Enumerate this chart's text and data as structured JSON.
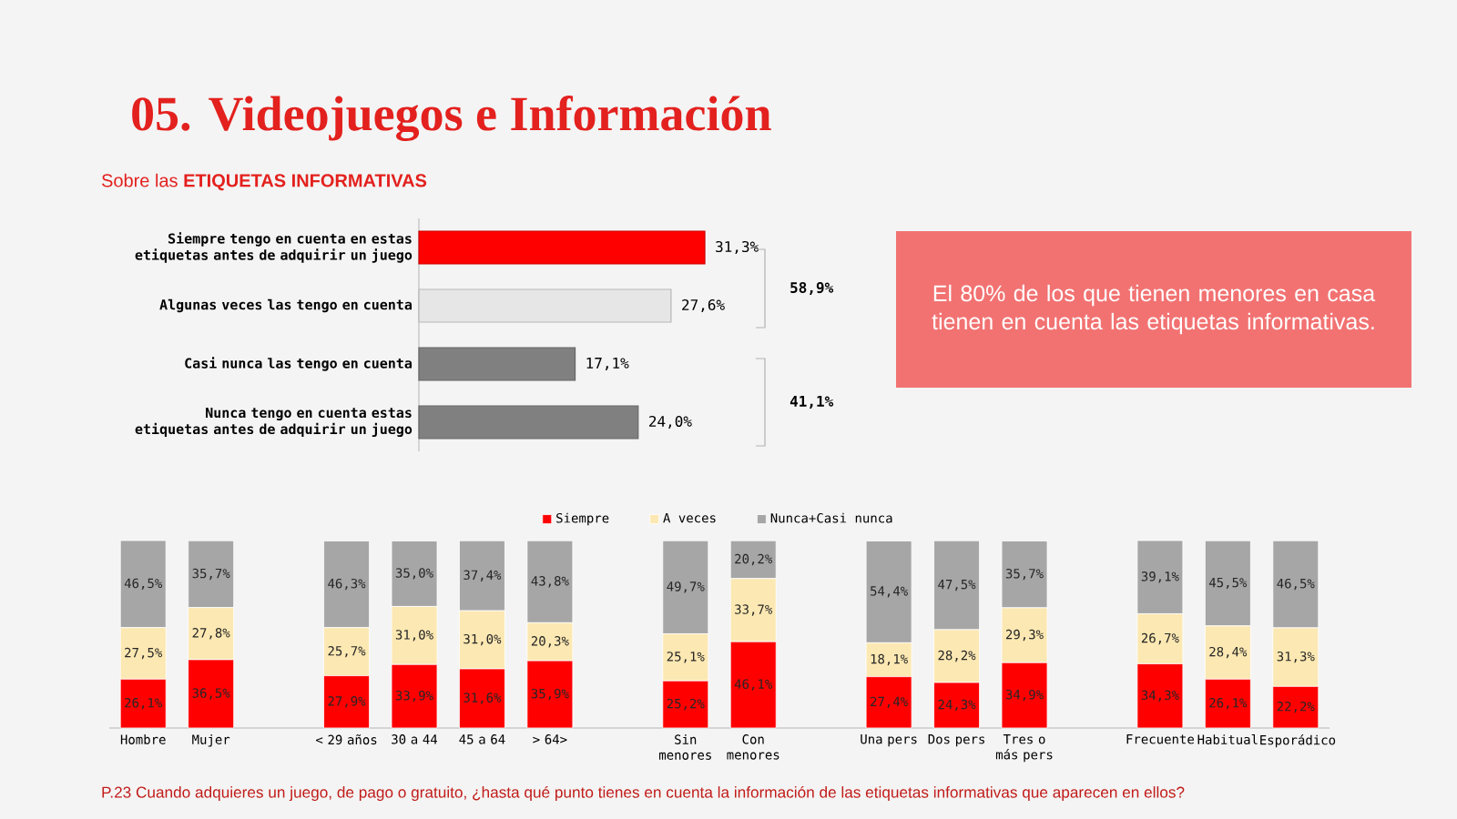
{
  "chart_data": [
    {
      "type": "bar",
      "orientation": "horizontal",
      "title": "05. Videojuegos e Información",
      "subtitle": "Sobre las **ETIQUETAS INFORMATIVAS**",
      "categories": [
        "Siempre tengo en cuenta en estas etiquetas antes de adquirir un juego",
        "Algunas veces las tengo en cuenta",
        "Casi nunca las tengo en cuenta",
        "Nunca tengo en cuenta estas etiquetas antes de adquirir un juego"
      ],
      "values": [
        31.3,
        27.6,
        17.1,
        24.0
      ],
      "colors": [
        "#ff0000",
        "#e6e6e6",
        "#808080",
        "#808080"
      ],
      "value_labels": [
        "31,3%",
        "27,6%",
        "17,1%",
        "24,0%"
      ],
      "annotations": [
        "58,9%",
        "41,1%",
        "El 80% de los que tienen menores en casa tienen en cuenta las etiquetas informativas."
      ]
    },
    {
      "type": "bar",
      "stacked": true,
      "legend": "top",
      "categories": [
        "Hombre",
        "Mujer",
        null,
        "< 29 años",
        "30 a 44",
        "45 a 64",
        "> 64>",
        null,
        "Sin menores",
        "Con menores",
        null,
        "Una pers",
        "Dos pers",
        "Tres o más pers",
        null,
        "Frecuente",
        "Habitual",
        "Esporádico"
      ],
      "series": [
        {
          "name": "Siempre",
          "color": "#ff0000",
          "values": [
            26.1,
            36.5,
            null,
            27.9,
            33.9,
            31.6,
            35.9,
            null,
            25.2,
            46.1,
            null,
            27.4,
            24.3,
            34.9,
            null,
            34.3,
            26.1,
            22.2
          ],
          "value_labels": [
            "26,1%",
            "36,5%",
            null,
            "27,9%",
            "33,9%",
            "31,6%",
            "35,9%",
            null,
            "25,2%",
            "46,1%",
            null,
            "27,4%",
            "24,3%",
            "34,9%",
            null,
            "34,3%",
            "26,1%",
            "22,2%"
          ]
        },
        {
          "name": "A veces",
          "color": "#fce8b2",
          "values": [
            27.5,
            27.8,
            null,
            25.7,
            31.0,
            31.0,
            20.3,
            null,
            25.1,
            33.7,
            null,
            18.1,
            28.2,
            29.3,
            null,
            26.7,
            28.4,
            31.3
          ],
          "value_labels": [
            "27,5%",
            "27,8%",
            null,
            "25,7%",
            "31,0%",
            "31,0%",
            "20,3%",
            null,
            "25,1%",
            "33,7%",
            null,
            "18,1%",
            "28,2%",
            "29,3%",
            null,
            "26,7%",
            "28,4%",
            "31,3%"
          ]
        },
        {
          "name": "Nunca+Casi nunca",
          "color": "#a6a6a6",
          "values": [
            46.5,
            35.7,
            null,
            46.3,
            35.0,
            37.4,
            43.8,
            null,
            49.7,
            20.2,
            null,
            54.4,
            47.5,
            35.7,
            null,
            39.1,
            45.5,
            46.5
          ],
          "value_labels": [
            "46,5%",
            "35,7%",
            null,
            "46,3%",
            "35,0%",
            "37,4%",
            "43,8%",
            null,
            "49,7%",
            "20,2%",
            null,
            "54,4%",
            "47,5%",
            "35,7%",
            null,
            "39,1%",
            "45,5%",
            "46,5%"
          ]
        }
      ],
      "annotations": [
        "P.23 Cuando adquieres un juego, de pago o gratuito, ¿hasta qué punto tienes en cuenta la información de las etiquetas informativas que aparecen en ellos?"
      ]
    }
  ]
}
